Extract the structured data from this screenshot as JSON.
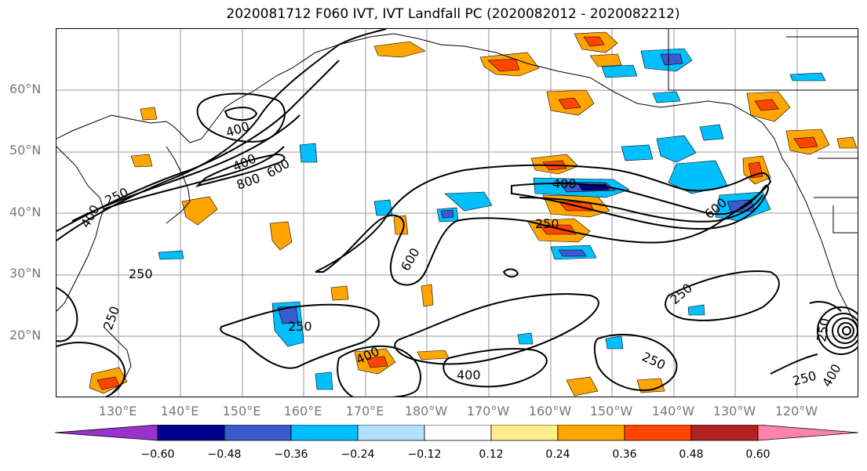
{
  "title": "2020081712 F060 IVT, IVT Landfall PC (2020082012 - 2020082212)",
  "map": {
    "lat_labels": [
      "60°N",
      "50°N",
      "40°N",
      "30°N",
      "20°N"
    ],
    "lon_labels": [
      "130°E",
      "140°E",
      "150°E",
      "160°E",
      "170°E",
      "180°W",
      "170°W",
      "160°W",
      "150°W",
      "140°W",
      "130°W",
      "120°W"
    ],
    "contour_labels": [
      "400",
      "400",
      "800",
      "600",
      "250",
      "400",
      "250",
      "250",
      "400",
      "600",
      "600",
      "250",
      "400",
      "400",
      "250",
      "250",
      "250",
      "250",
      "400",
      "250"
    ],
    "colors": {
      "contour": "#000000",
      "coast": "#000000",
      "grid": "#9a9a9a"
    }
  },
  "colorbar": {
    "ticks": [
      "−0.60",
      "−0.48",
      "−0.36",
      "−0.24",
      "−0.12",
      "0.12",
      "0.24",
      "0.36",
      "0.48",
      "0.60"
    ],
    "colors": [
      "#9932CC",
      "#00008B",
      "#3A5BCC",
      "#00BFFF",
      "#B0E2FF",
      "#FFFFFF",
      "#FFEC8B",
      "#FFA500",
      "#FF4500",
      "#B22222",
      "#FF82AB"
    ]
  }
}
